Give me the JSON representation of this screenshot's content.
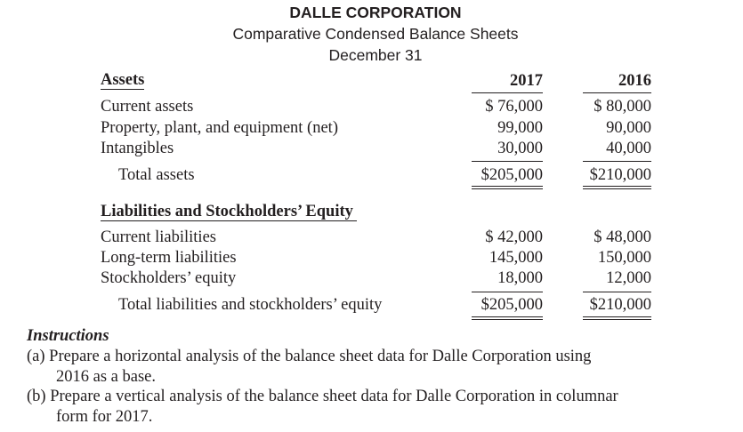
{
  "header": {
    "company": "DALLE CORPORATION",
    "title": "Comparative Condensed Balance Sheets",
    "date": "December 31"
  },
  "columns": [
    "2017",
    "2016"
  ],
  "assets": {
    "heading": "Assets",
    "rows": [
      {
        "label": "Current assets",
        "y2017": "$ 76,000",
        "y2016": "$ 80,000"
      },
      {
        "label": "Property, plant, and equipment (net)",
        "y2017": "99,000",
        "y2016": "90,000"
      },
      {
        "label": "Intangibles",
        "y2017": "30,000",
        "y2016": "40,000"
      }
    ],
    "total": {
      "label": "Total assets",
      "y2017": "$205,000",
      "y2016": "$210,000"
    }
  },
  "liabilities": {
    "heading": "Liabilities and Stockholders’ Equity",
    "rows": [
      {
        "label": "Current liabilities",
        "y2017": "$ 42,000",
        "y2016": "$ 48,000"
      },
      {
        "label": "Long-term liabilities",
        "y2017": "145,000",
        "y2016": "150,000"
      },
      {
        "label": "Stockholders’ equity",
        "y2017": "18,000",
        "y2016": "12,000"
      }
    ],
    "total": {
      "label": "Total liabilities and stockholders’ equity",
      "y2017": "$205,000",
      "y2016": "$210,000"
    }
  },
  "instructions": {
    "heading": "Instructions",
    "a_line1": "(a) Prepare a horizontal analysis of the balance sheet data for Dalle Corporation using",
    "a_line2": "2016 as a base.",
    "b_line1": "(b) Prepare a vertical analysis of the balance sheet data for Dalle Corporation in columnar",
    "b_line2": "form for 2017."
  }
}
